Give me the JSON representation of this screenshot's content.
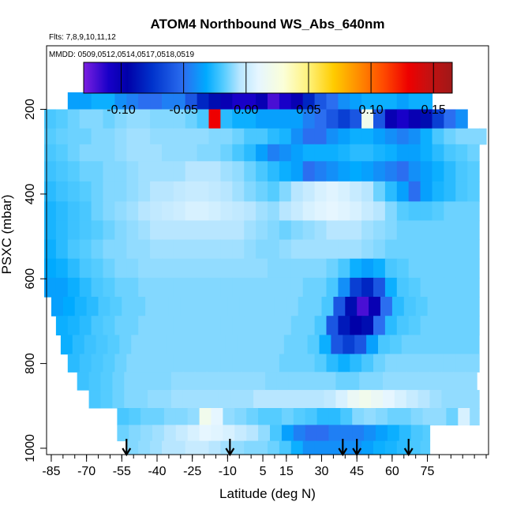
{
  "chart_data": {
    "type": "heatmap",
    "title": "ATOM4 Northbound WS_Abs_640nm",
    "flights_note": "Flts: 7,8,9,10,11,12",
    "dates_note": "MMDD: 0509,0512,0514,0517,0518,0519",
    "xlabel": "Latitude (deg N)",
    "ylabel": "PSXC (mbar)",
    "xlim": [
      -87,
      101
    ],
    "ylim": [
      1015,
      50
    ],
    "y_reversed": true,
    "x_ticks": [
      -85,
      -70,
      -55,
      -40,
      -25,
      -10,
      5,
      15,
      30,
      45,
      60,
      75
    ],
    "x_tick_labels": [
      "-85",
      "-70",
      "-55",
      "-40",
      "-25",
      "-10",
      "5",
      "15",
      "30",
      "45",
      "60",
      "75"
    ],
    "x_minor_step": 5,
    "y_ticks": [
      200,
      400,
      600,
      800,
      1000
    ],
    "y_tick_labels": [
      "200",
      "400",
      "600",
      "800",
      "1000"
    ],
    "colorbar": {
      "range": [
        -0.13,
        0.165
      ],
      "ticks": [
        -0.1,
        -0.05,
        0.0,
        0.05,
        0.1,
        0.15
      ],
      "tick_labels": [
        "-0.10",
        "-0.05",
        "0.00",
        "0.05",
        "0.10",
        "0.15"
      ],
      "stops": [
        {
          "v": -0.13,
          "c": "#7b1fe0"
        },
        {
          "v": -0.11,
          "c": "#1800c8"
        },
        {
          "v": -0.095,
          "c": "#0000a8"
        },
        {
          "v": -0.075,
          "c": "#0033cc"
        },
        {
          "v": -0.05,
          "c": "#2b6ef0"
        },
        {
          "v": -0.032,
          "c": "#00aaff"
        },
        {
          "v": -0.018,
          "c": "#55ccff"
        },
        {
          "v": -0.005,
          "c": "#b8e6ff"
        },
        {
          "v": 0.01,
          "c": "#e6f6ff"
        },
        {
          "v": 0.03,
          "c": "#fbffd8"
        },
        {
          "v": 0.05,
          "c": "#fff27a"
        },
        {
          "v": 0.07,
          "c": "#ffcc00"
        },
        {
          "v": 0.09,
          "c": "#ff8c00"
        },
        {
          "v": 0.11,
          "c": "#ff4a00"
        },
        {
          "v": 0.13,
          "c": "#ee0000"
        },
        {
          "v": 0.145,
          "c": "#c81010"
        },
        {
          "v": 0.165,
          "c": "#a01818"
        }
      ]
    },
    "profile_markers_lat": [
      -53,
      -9,
      39,
      45,
      67
    ],
    "grid": {
      "lat_step": 5,
      "pressure_levels": [
        175,
        225,
        265,
        300,
        345,
        395,
        440,
        485,
        530,
        575,
        620,
        665,
        710,
        755,
        800,
        840,
        885,
        925,
        965,
        1000
      ],
      "rows": [
        {
          "p": 175,
          "lat": [
            -78,
            77
          ],
          "v": [
            -0.035,
            -0.035,
            -0.03,
            -0.03,
            -0.04,
            -0.045,
            -0.05,
            -0.05,
            -0.045,
            -0.045,
            -0.06,
            -0.08,
            -0.09,
            -0.1,
            -0.11,
            -0.11,
            -0.1,
            -0.12,
            -0.11,
            -0.1,
            -0.08,
            -0.06,
            -0.05,
            -0.04,
            -0.035,
            -0.03,
            -0.03,
            -0.03,
            -0.035,
            -0.03,
            -0.03,
            -0.025
          ]
        },
        {
          "p": 225,
          "lat": [
            -88,
            92
          ],
          "v": [
            -0.02,
            -0.018,
            -0.015,
            -0.012,
            -0.012,
            -0.015,
            -0.012,
            -0.01,
            -0.01,
            -0.012,
            -0.012,
            -0.012,
            -0.015,
            -0.02,
            0.13,
            -0.025,
            -0.03,
            -0.03,
            -0.035,
            -0.035,
            -0.035,
            -0.035,
            -0.045,
            -0.05,
            -0.06,
            -0.07,
            -0.06,
            0.02,
            -0.06,
            -0.1,
            -0.11,
            -0.1,
            -0.09,
            -0.07,
            -0.05,
            -0.04,
            -0.03
          ]
        },
        {
          "p": 265,
          "lat": [
            -88,
            100
          ],
          "v": [
            -0.018,
            -0.016,
            -0.015,
            -0.015,
            -0.012,
            -0.012,
            -0.01,
            -0.008,
            -0.008,
            -0.01,
            -0.01,
            -0.01,
            -0.01,
            -0.01,
            -0.012,
            -0.012,
            -0.015,
            -0.02,
            -0.02,
            -0.025,
            -0.028,
            -0.04,
            -0.05,
            -0.05,
            -0.04,
            -0.035,
            -0.03,
            -0.03,
            -0.035,
            -0.04,
            -0.045,
            -0.04,
            -0.03,
            -0.02,
            -0.015,
            -0.012,
            -0.012,
            -0.012
          ]
        },
        {
          "p": 300,
          "lat": [
            -88,
            97
          ],
          "v": [
            -0.02,
            -0.018,
            -0.015,
            -0.012,
            -0.012,
            -0.012,
            -0.01,
            -0.008,
            -0.008,
            -0.008,
            -0.01,
            -0.01,
            -0.01,
            -0.012,
            -0.012,
            -0.015,
            -0.02,
            -0.025,
            -0.035,
            -0.045,
            -0.04,
            -0.035,
            -0.03,
            -0.03,
            -0.03,
            -0.028,
            -0.025,
            -0.025,
            -0.028,
            -0.03,
            -0.035,
            -0.035,
            -0.03,
            -0.025,
            -0.02,
            -0.018,
            -0.015
          ]
        },
        {
          "p": 345,
          "lat": [
            -88,
            97
          ],
          "v": [
            -0.022,
            -0.02,
            -0.018,
            -0.015,
            -0.015,
            -0.012,
            -0.012,
            -0.01,
            -0.008,
            -0.008,
            -0.008,
            -0.008,
            -0.005,
            -0.005,
            -0.005,
            -0.008,
            -0.01,
            -0.015,
            -0.02,
            -0.025,
            -0.03,
            -0.035,
            -0.05,
            -0.045,
            -0.04,
            -0.035,
            -0.032,
            -0.035,
            -0.04,
            -0.045,
            -0.05,
            -0.04,
            -0.035,
            -0.03,
            -0.025,
            -0.02,
            -0.018
          ]
        },
        {
          "p": 395,
          "lat": [
            -88,
            97
          ],
          "v": [
            -0.025,
            -0.022,
            -0.02,
            -0.018,
            -0.015,
            -0.012,
            -0.012,
            -0.01,
            -0.008,
            -0.005,
            -0.005,
            -0.002,
            0.0,
            0.0,
            -0.002,
            -0.005,
            -0.008,
            -0.012,
            -0.015,
            -0.018,
            -0.012,
            -0.005,
            0.0,
            0.005,
            0.008,
            0.005,
            0.0,
            -0.005,
            -0.015,
            -0.025,
            -0.035,
            -0.05,
            -0.035,
            -0.028,
            -0.025,
            -0.02,
            -0.018
          ]
        },
        {
          "p": 440,
          "lat": [
            -88,
            97
          ],
          "v": [
            -0.028,
            -0.025,
            -0.022,
            -0.02,
            -0.015,
            -0.012,
            -0.01,
            -0.008,
            -0.005,
            -0.002,
            0.0,
            0.002,
            0.005,
            0.005,
            0.003,
            0.0,
            -0.002,
            -0.005,
            -0.008,
            -0.01,
            -0.005,
            0.0,
            0.005,
            0.008,
            0.01,
            0.008,
            0.005,
            0.0,
            -0.005,
            -0.012,
            -0.018,
            -0.02,
            -0.02,
            -0.018,
            -0.015,
            -0.015,
            -0.015
          ]
        },
        {
          "p": 485,
          "lat": [
            -88,
            97
          ],
          "v": [
            -0.028,
            -0.025,
            -0.022,
            -0.02,
            -0.018,
            -0.015,
            -0.012,
            -0.01,
            -0.008,
            -0.005,
            -0.005,
            -0.005,
            -0.005,
            -0.005,
            -0.005,
            -0.005,
            -0.005,
            -0.008,
            -0.01,
            -0.012,
            -0.015,
            -0.012,
            -0.01,
            -0.008,
            -0.005,
            -0.005,
            -0.005,
            -0.008,
            -0.01,
            -0.012,
            -0.015,
            -0.015,
            -0.015,
            -0.015,
            -0.015,
            -0.015,
            -0.015
          ]
        },
        {
          "p": 530,
          "lat": [
            -88,
            97
          ],
          "v": [
            -0.03,
            -0.025,
            -0.02,
            -0.018,
            -0.015,
            -0.012,
            -0.012,
            -0.01,
            -0.01,
            -0.008,
            -0.008,
            -0.008,
            -0.008,
            -0.008,
            -0.008,
            -0.008,
            -0.008,
            -0.01,
            -0.012,
            -0.012,
            -0.01,
            -0.008,
            -0.008,
            -0.008,
            -0.008,
            -0.008,
            -0.008,
            -0.01,
            -0.012,
            -0.015,
            -0.015,
            -0.015,
            -0.015,
            -0.015,
            -0.015,
            -0.015,
            -0.015
          ]
        },
        {
          "p": 575,
          "lat": [
            -88,
            97
          ],
          "v": [
            -0.032,
            -0.03,
            -0.025,
            -0.02,
            -0.018,
            -0.015,
            -0.012,
            -0.012,
            -0.01,
            -0.01,
            -0.01,
            -0.01,
            -0.01,
            -0.01,
            -0.01,
            -0.01,
            -0.01,
            -0.01,
            -0.01,
            -0.012,
            -0.012,
            -0.012,
            -0.012,
            -0.012,
            -0.015,
            -0.02,
            -0.03,
            -0.035,
            -0.03,
            -0.02,
            -0.018,
            -0.015,
            -0.015,
            -0.015,
            -0.015,
            -0.015,
            -0.015
          ]
        },
        {
          "p": 620,
          "lat": [
            -88,
            97
          ],
          "v": [
            -0.035,
            -0.035,
            -0.03,
            -0.025,
            -0.02,
            -0.018,
            -0.015,
            -0.015,
            -0.012,
            -0.012,
            -0.012,
            -0.012,
            -0.012,
            -0.012,
            -0.012,
            -0.012,
            -0.012,
            -0.012,
            -0.012,
            -0.012,
            -0.012,
            -0.012,
            -0.015,
            -0.015,
            -0.02,
            -0.04,
            -0.07,
            -0.08,
            -0.06,
            -0.03,
            -0.02,
            -0.018,
            -0.015,
            -0.015,
            -0.015,
            -0.015,
            -0.015
          ]
        },
        {
          "p": 665,
          "lat": [
            -85,
            97
          ],
          "v": [
            -0.035,
            -0.032,
            -0.028,
            -0.025,
            -0.02,
            -0.018,
            -0.015,
            -0.015,
            -0.012,
            -0.012,
            -0.012,
            -0.012,
            -0.012,
            -0.012,
            -0.012,
            -0.012,
            -0.012,
            -0.012,
            -0.012,
            -0.012,
            -0.012,
            -0.015,
            -0.015,
            -0.02,
            -0.06,
            -0.09,
            -0.12,
            -0.1,
            -0.05,
            -0.025,
            -0.02,
            -0.018,
            -0.015,
            -0.015,
            -0.015,
            -0.015,
            -0.015
          ]
        },
        {
          "p": 710,
          "lat": [
            -83,
            97
          ],
          "v": [
            -0.03,
            -0.028,
            -0.025,
            -0.02,
            -0.018,
            -0.015,
            -0.015,
            -0.012,
            -0.012,
            -0.012,
            -0.012,
            -0.012,
            -0.012,
            -0.012,
            -0.012,
            -0.012,
            -0.012,
            -0.012,
            -0.012,
            -0.012,
            -0.015,
            -0.015,
            -0.02,
            -0.06,
            -0.085,
            -0.095,
            -0.09,
            -0.05,
            -0.025,
            -0.02,
            -0.018,
            -0.015,
            -0.015,
            -0.015,
            -0.015,
            -0.015
          ]
        },
        {
          "p": 755,
          "lat": [
            -81,
            97
          ],
          "v": [
            -0.03,
            -0.025,
            -0.022,
            -0.02,
            -0.018,
            -0.015,
            -0.012,
            -0.012,
            -0.012,
            -0.012,
            -0.012,
            -0.012,
            -0.012,
            -0.012,
            -0.012,
            -0.012,
            -0.012,
            -0.012,
            -0.012,
            -0.015,
            -0.015,
            -0.018,
            -0.03,
            -0.06,
            -0.07,
            -0.06,
            -0.035,
            -0.02,
            -0.018,
            -0.015,
            -0.015,
            -0.015,
            -0.015,
            -0.015,
            -0.015,
            -0.015
          ]
        },
        {
          "p": 800,
          "lat": [
            -78,
            97
          ],
          "v": [
            -0.025,
            -0.022,
            -0.02,
            -0.018,
            -0.015,
            -0.012,
            -0.012,
            -0.012,
            -0.012,
            -0.012,
            -0.012,
            -0.012,
            -0.012,
            -0.012,
            -0.012,
            -0.012,
            -0.012,
            -0.012,
            -0.015,
            -0.015,
            -0.015,
            -0.018,
            -0.025,
            -0.03,
            -0.025,
            -0.02,
            -0.015,
            -0.012,
            -0.012,
            -0.012,
            -0.012,
            -0.012,
            -0.012,
            -0.012,
            -0.012
          ]
        },
        {
          "p": 840,
          "lat": [
            -74,
            97
          ],
          "v": [
            -0.022,
            -0.02,
            -0.018,
            -0.015,
            -0.012,
            -0.012,
            -0.012,
            -0.012,
            -0.01,
            -0.01,
            -0.01,
            -0.01,
            -0.01,
            -0.01,
            -0.01,
            -0.01,
            -0.012,
            -0.012,
            -0.012,
            -0.012,
            -0.012,
            -0.012,
            -0.015,
            -0.015,
            -0.012,
            -0.012,
            -0.01,
            -0.01,
            -0.01,
            -0.01,
            -0.01,
            -0.01,
            -0.01,
            -0.01
          ]
        },
        {
          "p": 885,
          "lat": [
            -69,
            97
          ],
          "v": [
            -0.02,
            -0.018,
            -0.015,
            -0.012,
            -0.012,
            -0.01,
            -0.01,
            -0.008,
            -0.008,
            -0.008,
            -0.008,
            -0.008,
            -0.008,
            -0.008,
            -0.005,
            -0.005,
            -0.005,
            -0.005,
            -0.005,
            -0.005,
            -0.002,
            0.005,
            0.015,
            0.02,
            0.015,
            0.01,
            0.005,
            0.0,
            -0.005,
            -0.008,
            -0.01,
            -0.01,
            -0.01,
            -0.01
          ]
        },
        {
          "p": 925,
          "lat": [
            -57,
            97
          ],
          "v": [
            -0.02,
            -0.018,
            -0.015,
            -0.015,
            -0.012,
            -0.012,
            -0.01,
            0.02,
            0.01,
            -0.01,
            -0.012,
            -0.015,
            -0.018,
            -0.018,
            -0.015,
            -0.018,
            -0.02,
            -0.025,
            -0.025,
            -0.02,
            -0.012,
            -0.01,
            -0.012,
            -0.015,
            -0.015,
            -0.012,
            -0.01,
            -0.01,
            -0.015,
            0.005,
            -0.01,
            -0.015
          ]
        },
        {
          "p": 965,
          "lat": [
            -57,
            76
          ],
          "v": [
            -0.015,
            -0.012,
            -0.01,
            -0.008,
            -0.005,
            0.0,
            0.005,
            0.01,
            0.008,
            0.005,
            0.0,
            -0.005,
            -0.01,
            -0.02,
            -0.035,
            -0.045,
            -0.05,
            -0.05,
            -0.045,
            -0.045,
            -0.045,
            -0.04,
            -0.035,
            -0.03,
            -0.025,
            -0.02,
            -0.018
          ]
        },
        {
          "p": 1000,
          "lat": [
            -53,
            76
          ],
          "v": [
            -0.012,
            -0.01,
            -0.008,
            -0.005,
            -0.005,
            0.0,
            0.0,
            -0.005,
            -0.008,
            -0.01,
            -0.012,
            -0.012,
            -0.015,
            -0.02,
            -0.03,
            -0.04,
            -0.04,
            -0.04,
            -0.04,
            -0.04,
            -0.035,
            -0.03,
            -0.028,
            -0.025,
            -0.02,
            -0.018
          ]
        }
      ]
    }
  }
}
